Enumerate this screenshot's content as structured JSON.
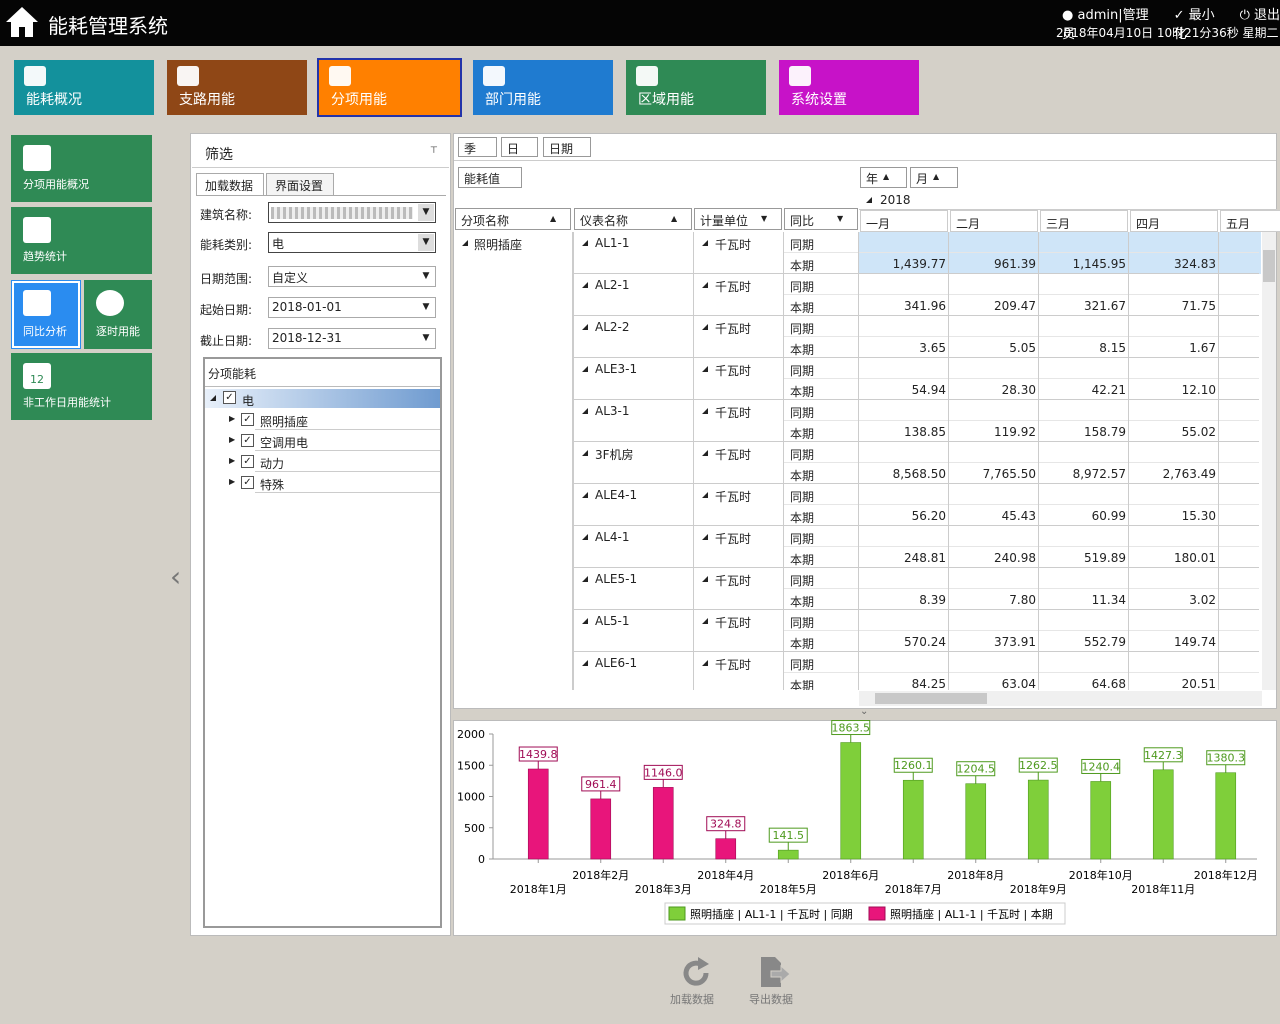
{
  "header": {
    "title": "能耗管理系统",
    "user": "admin|管理员",
    "minimize": "最小化",
    "exit": "退出",
    "datetime": "2018年04月10日 10时21分36秒 星期二"
  },
  "nav": [
    "能耗概况",
    "支路用能",
    "分项用能",
    "部门用能",
    "区域用能",
    "系统设置"
  ],
  "side": [
    "分项用能概况",
    "趋势统计",
    "同比分析",
    "逐时用能",
    "非工作日用能统计"
  ],
  "calendar_day": "12",
  "filter": {
    "title": "筛选",
    "tabs": [
      "加载数据",
      "界面设置"
    ],
    "fields": [
      {
        "label": "建筑名称:",
        "value": null
      },
      {
        "label": "能耗类别:",
        "value": "电"
      },
      {
        "label": "日期范围:",
        "value": "自定义"
      },
      {
        "label": "起始日期:",
        "value": "2018-01-01"
      },
      {
        "label": "截止日期:",
        "value": "2018-12-31"
      }
    ],
    "tree": {
      "title": "分项能耗",
      "root": "电",
      "children": [
        "照明插座",
        "空调用电",
        "动力",
        "特殊"
      ]
    }
  },
  "pivot": {
    "group_fields": [
      "季",
      "日",
      "日期"
    ],
    "data_field": "能耗值",
    "column_fields": [
      "年",
      "月"
    ],
    "year": "2018",
    "months": [
      "一月",
      "二月",
      "三月",
      "四月",
      "五月"
    ],
    "row_headers": [
      "分项名称",
      "仪表名称",
      "计量单位",
      "同比"
    ],
    "category": "照明插座",
    "periods": [
      "同期",
      "本期"
    ],
    "rows": [
      {
        "meter": "AL1-1",
        "unit": "千瓦时",
        "values": [
          "1,439.77",
          "961.39",
          "1,145.95",
          "324.83"
        ]
      },
      {
        "meter": "AL2-1",
        "unit": "千瓦时",
        "values": [
          "341.96",
          "209.47",
          "321.67",
          "71.75"
        ]
      },
      {
        "meter": "AL2-2",
        "unit": "千瓦时",
        "values": [
          "3.65",
          "5.05",
          "8.15",
          "1.67"
        ]
      },
      {
        "meter": "ALE3-1",
        "unit": "千瓦时",
        "values": [
          "54.94",
          "28.30",
          "42.21",
          "12.10"
        ]
      },
      {
        "meter": "AL3-1",
        "unit": "千瓦时",
        "values": [
          "138.85",
          "119.92",
          "158.79",
          "55.02"
        ]
      },
      {
        "meter": "3F机房",
        "unit": "千瓦时",
        "values": [
          "8,568.50",
          "7,765.50",
          "8,972.57",
          "2,763.49"
        ]
      },
      {
        "meter": "ALE4-1",
        "unit": "千瓦时",
        "values": [
          "56.20",
          "45.43",
          "60.99",
          "15.30"
        ]
      },
      {
        "meter": "AL4-1",
        "unit": "千瓦时",
        "values": [
          "248.81",
          "240.98",
          "519.89",
          "180.01"
        ]
      },
      {
        "meter": "ALE5-1",
        "unit": "千瓦时",
        "values": [
          "8.39",
          "7.80",
          "11.34",
          "3.02"
        ]
      },
      {
        "meter": "AL5-1",
        "unit": "千瓦时",
        "values": [
          "570.24",
          "373.91",
          "552.79",
          "149.74"
        ]
      },
      {
        "meter": "ALE6-1",
        "unit": "千瓦时",
        "values": [
          "84.25",
          "63.04",
          "64.68",
          "20.51"
        ]
      }
    ]
  },
  "chart_data": {
    "type": "bar",
    "categories": [
      "2018年1月",
      "2018年2月",
      "2018年3月",
      "2018年4月",
      "2018年5月",
      "2018年6月",
      "2018年7月",
      "2018年8月",
      "2018年9月",
      "2018年10月",
      "2018年11月",
      "2018年12月"
    ],
    "series": [
      {
        "name": "照明插座 | AL1-1 | 千瓦时 | 同期",
        "color": "#7fcf3a",
        "values": [
          null,
          null,
          null,
          null,
          141.5,
          1863.5,
          1260.1,
          1204.5,
          1262.5,
          1240.4,
          1427.3,
          1380.3
        ],
        "value_labels": [
          null,
          null,
          null,
          null,
          "141.5",
          "1863.5",
          "1260.1",
          "1204.5",
          "1262.5",
          "1240.4",
          "1427.3",
          "1380.3"
        ]
      },
      {
        "name": "照明插座 | AL1-1 | 千瓦时 | 本期",
        "color": "#e8157b",
        "values": [
          1439.8,
          961.4,
          1146.0,
          324.8,
          null,
          null,
          null,
          null,
          null,
          null,
          null,
          null
        ],
        "value_labels": [
          "1439.8",
          "961.4",
          "1146.0",
          "324.8",
          null,
          null,
          null,
          null,
          null,
          null,
          null,
          null
        ]
      }
    ],
    "ylim": [
      0,
      2000
    ],
    "yticks": [
      0,
      500,
      1000,
      1500,
      2000
    ],
    "grid": false,
    "legend": "bottom"
  },
  "actions": [
    "加载数据",
    "导出数据"
  ]
}
